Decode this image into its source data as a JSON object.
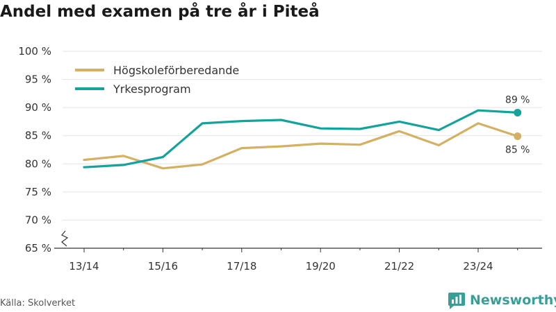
{
  "title": "Andel med examen på tre år i Piteå",
  "source": "Källa: Skolverket",
  "brand": "Newsworthy",
  "colors": {
    "series_1": "#d4b062",
    "series_2": "#14a39a",
    "grid": "#e3e3e3",
    "axis": "#333333",
    "text": "#333333",
    "brand": "#3a9e98"
  },
  "chart_data": {
    "type": "line",
    "title": "Andel med examen på tre år i Piteå",
    "xlabel": "",
    "ylabel": "",
    "ylim": [
      65,
      100
    ],
    "y_axis_break": true,
    "yticks": [
      65,
      70,
      75,
      80,
      85,
      90,
      95,
      100
    ],
    "ytick_suffix": " %",
    "grid": true,
    "legend_position": "top-left",
    "x": [
      "13/14",
      "14/15",
      "15/16",
      "16/17",
      "17/18",
      "18/19",
      "19/20",
      "20/21",
      "21/22",
      "22/23",
      "23/24",
      "24/25"
    ],
    "x_tick_labels": [
      "13/14",
      "15/16",
      "17/18",
      "19/20",
      "21/22",
      "23/24"
    ],
    "series": [
      {
        "name": "Högskoleförberedande",
        "color_key": "series_1",
        "values": [
          80.7,
          81.4,
          79.2,
          79.9,
          82.8,
          83.1,
          83.6,
          83.4,
          85.8,
          83.3,
          87.2,
          84.9
        ],
        "end_label": "85 %",
        "end_label_position": "below"
      },
      {
        "name": "Yrkesprogram",
        "color_key": "series_2",
        "values": [
          79.4,
          79.8,
          81.2,
          87.2,
          87.6,
          87.8,
          86.3,
          86.2,
          87.5,
          86.0,
          89.5,
          89.1
        ],
        "end_label": "89 %",
        "end_label_position": "above"
      }
    ]
  }
}
